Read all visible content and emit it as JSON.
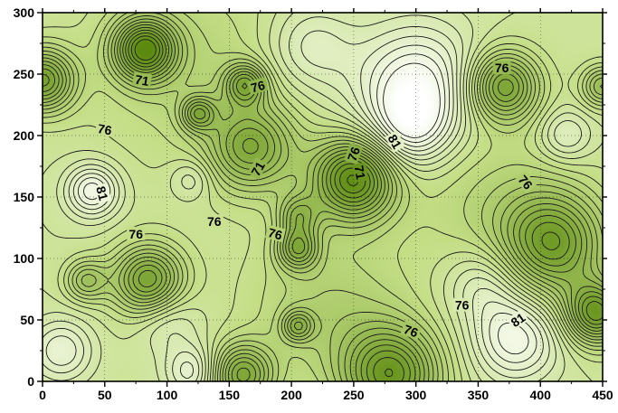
{
  "chart_data": {
    "type": "heatmap",
    "subtype": "contour",
    "title": "",
    "xlabel": "",
    "ylabel": "",
    "xlim": [
      0,
      450
    ],
    "ylim": [
      0,
      300
    ],
    "x_ticks": [
      0,
      50,
      100,
      150,
      200,
      250,
      300,
      350,
      400,
      450
    ],
    "y_ticks": [
      0,
      50,
      100,
      150,
      200,
      250,
      300
    ],
    "x_tick_labels": [
      "0",
      "50",
      "100",
      "150",
      "200",
      "250",
      "300",
      "350",
      "400",
      "450"
    ],
    "y_tick_labels": [
      "0",
      "50",
      "100",
      "150",
      "200",
      "250",
      "300"
    ],
    "grid": true,
    "legend": "none",
    "colors": {
      "low": "#5b8a0e",
      "mid": "#c4de86",
      "high": "#ffffff",
      "lines": "#1c1c1c"
    },
    "value_range": [
      62,
      86
    ],
    "contour_levels": [
      63,
      64,
      65,
      66,
      67,
      68,
      69,
      70,
      71,
      72,
      73,
      74,
      75,
      76,
      77,
      78,
      79,
      80,
      81,
      82,
      83,
      84
    ],
    "base_value": 77,
    "features": [
      {
        "x": 0,
        "y": 245,
        "r": 18,
        "d": -11
      },
      {
        "x": 82,
        "y": 270,
        "r": 18,
        "d": -13
      },
      {
        "x": 120,
        "y": 255,
        "r": 60,
        "d": -3
      },
      {
        "x": 163,
        "y": 242,
        "r": 12,
        "d": -8
      },
      {
        "x": 125,
        "y": 218,
        "r": 10,
        "d": -7
      },
      {
        "x": 168,
        "y": 190,
        "r": 25,
        "d": -9
      },
      {
        "x": 250,
        "y": 165,
        "r": 24,
        "d": -14
      },
      {
        "x": 205,
        "y": 135,
        "r": 12,
        "d": -6
      },
      {
        "x": 205,
        "y": 108,
        "r": 12,
        "d": -8
      },
      {
        "x": 85,
        "y": 82,
        "r": 20,
        "d": -11
      },
      {
        "x": 35,
        "y": 82,
        "r": 12,
        "d": -6
      },
      {
        "x": 160,
        "y": 5,
        "r": 18,
        "d": -10
      },
      {
        "x": 280,
        "y": 5,
        "r": 28,
        "d": -12
      },
      {
        "x": 410,
        "y": 112,
        "r": 30,
        "d": -11
      },
      {
        "x": 445,
        "y": 55,
        "r": 18,
        "d": -12
      },
      {
        "x": 370,
        "y": 240,
        "r": 20,
        "d": -11
      },
      {
        "x": 230,
        "y": 60,
        "r": 45,
        "d": -4
      },
      {
        "x": 360,
        "y": 150,
        "r": 50,
        "d": -3
      },
      {
        "x": 205,
        "y": 45,
        "r": 9,
        "d": -6
      },
      {
        "x": 450,
        "y": 240,
        "r": 12,
        "d": -7
      },
      {
        "x": 300,
        "y": 240,
        "r": 35,
        "d": 8
      },
      {
        "x": 295,
        "y": 205,
        "r": 22,
        "d": 5
      },
      {
        "x": 40,
        "y": 155,
        "r": 15,
        "d": 7
      },
      {
        "x": 380,
        "y": 35,
        "r": 25,
        "d": 7
      },
      {
        "x": 120,
        "y": 8,
        "r": 15,
        "d": 5
      },
      {
        "x": 15,
        "y": 25,
        "r": 18,
        "d": 5
      },
      {
        "x": 420,
        "y": 200,
        "r": 15,
        "d": 4
      },
      {
        "x": 215,
        "y": 272,
        "r": 25,
        "d": 4
      },
      {
        "x": 355,
        "y": 80,
        "r": 22,
        "d": 4
      },
      {
        "x": 120,
        "y": 165,
        "r": 12,
        "d": 3
      },
      {
        "x": 100,
        "y": 50,
        "r": 18,
        "d": 3
      }
    ],
    "labels": [
      {
        "text": "71",
        "x": 80,
        "y": 245,
        "rotate": 10
      },
      {
        "text": "76",
        "x": 173,
        "y": 240,
        "rotate": -15
      },
      {
        "text": "76",
        "x": 50,
        "y": 205,
        "rotate": 10
      },
      {
        "text": "71",
        "x": 173,
        "y": 173,
        "rotate": -60
      },
      {
        "text": "76",
        "x": 250,
        "y": 185,
        "rotate": -70
      },
      {
        "text": "71",
        "x": 255,
        "y": 170,
        "rotate": 80
      },
      {
        "text": "81",
        "x": 283,
        "y": 195,
        "rotate": 60
      },
      {
        "text": "81",
        "x": 48,
        "y": 153,
        "rotate": 75
      },
      {
        "text": "76",
        "x": 138,
        "y": 130,
        "rotate": 0
      },
      {
        "text": "76",
        "x": 75,
        "y": 120,
        "rotate": 0
      },
      {
        "text": "76",
        "x": 187,
        "y": 120,
        "rotate": 15
      },
      {
        "text": "76",
        "x": 369,
        "y": 255,
        "rotate": 0
      },
      {
        "text": "76",
        "x": 388,
        "y": 162,
        "rotate": 50
      },
      {
        "text": "76",
        "x": 337,
        "y": 62,
        "rotate": 0
      },
      {
        "text": "76",
        "x": 296,
        "y": 41,
        "rotate": 20
      },
      {
        "text": "81",
        "x": 382,
        "y": 50,
        "rotate": -35
      }
    ]
  }
}
